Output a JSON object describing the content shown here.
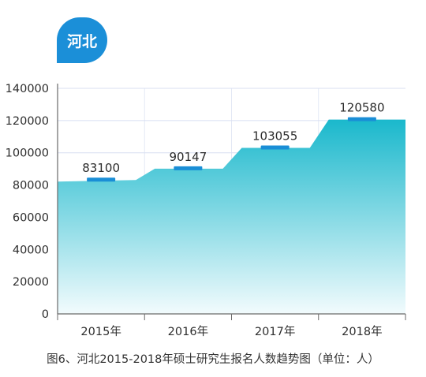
{
  "badge": {
    "label": "河北",
    "color": "#1b8fd8"
  },
  "caption": "图6、河北2015-2018年硕士研究生报名人数趋势图（单位：人）",
  "colors": {
    "area_top": "#1ab8cc",
    "area_bottom": "#f2fbfd",
    "label_mark": "#1a8ed6",
    "axis": "#6a6a6a",
    "grid": "#d8dff2"
  },
  "chart_data": {
    "type": "area",
    "title": "",
    "xlabel": "",
    "ylabel": "",
    "categories": [
      "2015年",
      "2016年",
      "2017年",
      "2018年"
    ],
    "values": [
      83100,
      90147,
      103055,
      120580
    ],
    "data_labels": [
      "83100",
      "90147",
      "103055",
      "120580"
    ],
    "y_ticks": [
      0,
      20000,
      40000,
      60000,
      80000,
      100000,
      120000,
      140000
    ],
    "y_tick_labels": [
      "0",
      "20000",
      "40000",
      "60000",
      "80000",
      "100000",
      "120000",
      "140000"
    ],
    "ylim": [
      0,
      140000
    ],
    "grid": true,
    "legend": "none",
    "shape": "step"
  }
}
